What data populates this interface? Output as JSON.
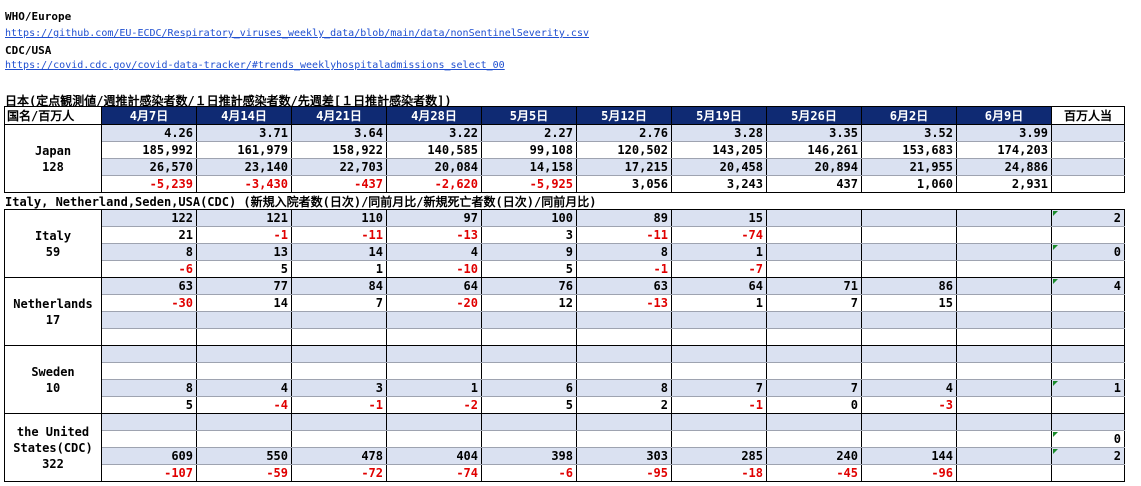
{
  "sources": {
    "who_label": "WHO/Europe",
    "who_url": "https://github.com/EU-ECDC/Respiratory_viruses_weekly_data/blob/main/data/nonSentinelSeverity.csv",
    "cdc_label": "CDC/USA",
    "cdc_url": "https://covid.cdc.gov/covid-data-tracker/#trends_weeklyhospitaladmissions_select_00"
  },
  "japan_section": {
    "title": "日本(定点観測値/週推計感染者数/１日推計感染者数/先週差[１日推計感染者数])",
    "header": [
      "国名/百万人",
      "4月7日",
      "4月14日",
      "4月21日",
      "4月28日",
      "5月5日",
      "5月12日",
      "5月19日",
      "5月26日",
      "6月2日",
      "6月9日",
      "百万人当"
    ],
    "country": {
      "name": "Japan",
      "pop": "128"
    },
    "rows": [
      [
        "4.26",
        "3.71",
        "3.64",
        "3.22",
        "2.27",
        "2.76",
        "3.28",
        "3.35",
        "3.52",
        "3.99",
        ""
      ],
      [
        "185,992",
        "161,979",
        "158,922",
        "140,585",
        "99,108",
        "120,502",
        "143,205",
        "146,261",
        "153,683",
        "174,203",
        ""
      ],
      [
        "26,570",
        "23,140",
        "22,703",
        "20,084",
        "14,158",
        "17,215",
        "20,458",
        "20,894",
        "21,955",
        "24,886",
        ""
      ],
      [
        "-5,239",
        "-3,430",
        "-437",
        "-2,620",
        "-5,925",
        "3,056",
        "3,243",
        "437",
        "1,060",
        "2,931",
        ""
      ]
    ]
  },
  "intl_section": {
    "title": "Italy, Netherland,Seden,USA(CDC) (新規入院者数(日次)/同前月比/新規死亡者数(日次)/同前月比)",
    "countries": [
      {
        "name": "Italy",
        "pop": "59",
        "rows": [
          [
            "122",
            "121",
            "110",
            "97",
            "100",
            "89",
            "15",
            "",
            "",
            "",
            "2"
          ],
          [
            "21",
            "-1",
            "-11",
            "-13",
            "3",
            "-11",
            "-74",
            "",
            "",
            "",
            ""
          ],
          [
            "8",
            "13",
            "14",
            "4",
            "9",
            "8",
            "1",
            "",
            "",
            "",
            "0"
          ],
          [
            "-6",
            "5",
            "1",
            "-10",
            "5",
            "-1",
            "-7",
            "",
            "",
            "",
            ""
          ]
        ]
      },
      {
        "name": "Netherlands",
        "pop": "17",
        "rows": [
          [
            "63",
            "77",
            "84",
            "64",
            "76",
            "63",
            "64",
            "71",
            "86",
            "",
            "4"
          ],
          [
            "-30",
            "14",
            "7",
            "-20",
            "12",
            "-13",
            "1",
            "7",
            "15",
            "",
            ""
          ],
          [
            "",
            "",
            "",
            "",
            "",
            "",
            "",
            "",
            "",
            "",
            ""
          ],
          [
            "",
            "",
            "",
            "",
            "",
            "",
            "",
            "",
            "",
            "",
            ""
          ]
        ]
      },
      {
        "name": "Sweden",
        "pop": "10",
        "rows": [
          [
            "",
            "",
            "",
            "",
            "",
            "",
            "",
            "",
            "",
            "",
            ""
          ],
          [
            "",
            "",
            "",
            "",
            "",
            "",
            "",
            "",
            "",
            "",
            ""
          ],
          [
            "8",
            "4",
            "3",
            "1",
            "6",
            "8",
            "7",
            "7",
            "4",
            "",
            "1"
          ],
          [
            "5",
            "-4",
            "-1",
            "-2",
            "5",
            "2",
            "-1",
            "0",
            "-3",
            "",
            ""
          ]
        ]
      },
      {
        "name": "the United States(CDC)",
        "pop": "322",
        "rows": [
          [
            "",
            "",
            "",
            "",
            "",
            "",
            "",
            "",
            "",
            "",
            ""
          ],
          [
            "",
            "",
            "",
            "",
            "",
            "",
            "",
            "",
            "",
            "",
            "0"
          ],
          [
            "609",
            "550",
            "478",
            "404",
            "398",
            "303",
            "285",
            "240",
            "144",
            "",
            "2"
          ],
          [
            "-107",
            "-59",
            "-72",
            "-74",
            "-6",
            "-95",
            "-18",
            "-45",
            "-96",
            "",
            ""
          ]
        ]
      }
    ]
  },
  "colors": {
    "header_bg": "#0f2a73",
    "band": "#dae1f1",
    "negative": "#e00000",
    "link": "#1f4fd0"
  }
}
